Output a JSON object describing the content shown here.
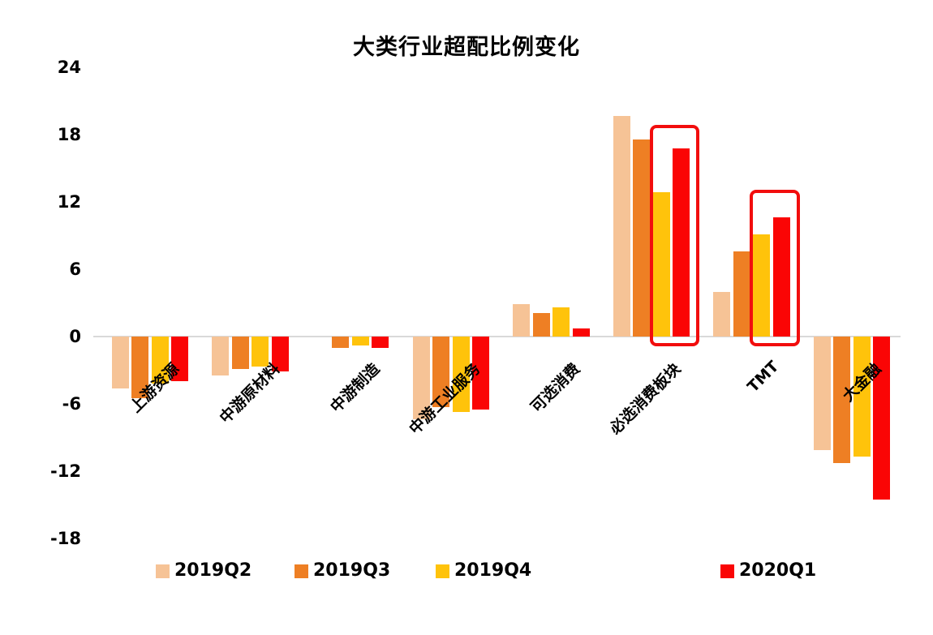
{
  "title": "大类行业超配比例变化",
  "chart_data": {
    "type": "bar",
    "title": "大类行业超配比例变化",
    "categories": [
      "上游资源",
      "中游原材料",
      "中游制造",
      "中游工业服务",
      "可选消费",
      "必选消费板块",
      "TMT",
      "大金融"
    ],
    "series": [
      {
        "name": "2019Q2",
        "color": "#F6C396",
        "values": [
          -4.6,
          -3.5,
          0,
          -7.4,
          2.9,
          19.7,
          4.0,
          -10.1
        ]
      },
      {
        "name": "2019Q3",
        "color": "#EE7F24",
        "values": [
          -5.5,
          -2.9,
          -1.0,
          -6.3,
          2.1,
          17.6,
          7.6,
          -11.3
        ]
      },
      {
        "name": "2019Q4",
        "color": "#FFC30B",
        "values": [
          -4.2,
          -2.7,
          -0.8,
          -6.7,
          2.6,
          12.9,
          9.1,
          -10.7
        ]
      },
      {
        "name": "2020Q1",
        "color": "#FA0505",
        "values": [
          -4.0,
          -3.1,
          -1.0,
          -6.5,
          0.7,
          16.8,
          10.6,
          -14.5
        ]
      }
    ],
    "ylim": [
      -18,
      24
    ],
    "yticks": [
      24,
      18,
      12,
      6,
      0,
      -6,
      -12,
      -18
    ],
    "xlabel": "",
    "ylabel": "",
    "grid": "zero-line-only",
    "zero_line_color": "#D9D9D9",
    "legend_position": "bottom",
    "legend": [
      "2019Q2",
      "2019Q3",
      "2019Q4",
      "2020Q1"
    ],
    "highlight_boxes": [
      {
        "category": "必选消费板块",
        "around_series": [
          "2019Q4",
          "2020Q1"
        ],
        "top_value": 18.6,
        "color": "#F20D0D"
      },
      {
        "category": "TMT",
        "around_series": [
          "2019Q4",
          "2020Q1"
        ],
        "top_value": 12.8,
        "color": "#F20D0D"
      }
    ]
  }
}
